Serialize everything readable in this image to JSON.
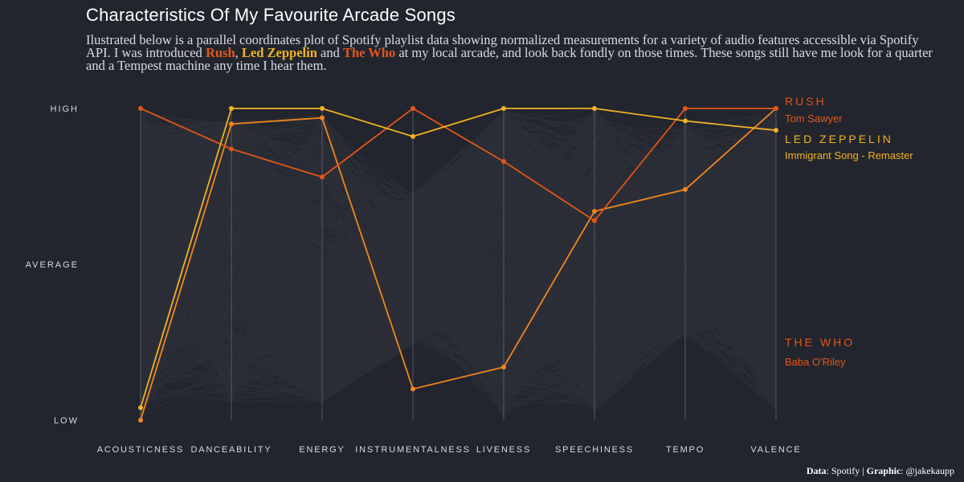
{
  "title": "Characteristics Of My Favourite Arcade Songs",
  "subtitle": {
    "part1": "Ilustrated below is a parallel coordinates plot of Spotify playlist data showing normalized measurements for a variety of audio features accessible via Spotify API. I was introduced ",
    "band1": "Rush",
    "sep1": ", ",
    "band2": "Led Zeppelin",
    "sep2": " and ",
    "band3": "The Who",
    "part2": " at my local arcade, and look back fondly on those times. These songs still have me look for a quarter and a Tempest machine any time I hear them."
  },
  "caption": {
    "data_label": "Data",
    "data_value": ": Spotify | ",
    "graphic_label": "Graphic",
    "graphic_value": ": @jakekaupp"
  },
  "chart_data": {
    "type": "parallel-coordinates",
    "axes": [
      "ACOUSTICNESS",
      "DANCEABILITY",
      "ENERGY",
      "INSTRUMENTALNESS",
      "LIVENESS",
      "SPEECHINESS",
      "TEMPO",
      "VALENCE"
    ],
    "y_ticks": [
      {
        "label": "HIGH",
        "value": 1
      },
      {
        "label": "AVERAGE",
        "value": 0.5
      },
      {
        "label": "LOW",
        "value": 0
      }
    ],
    "ylim": [
      0,
      1
    ],
    "grid": false,
    "background_distribution": {
      "color": "#cfd8e3",
      "upper": [
        1.0,
        0.96,
        0.98,
        0.97,
        0.99,
        1.0,
        0.95,
        0.99
      ],
      "lower": [
        0.0,
        0.06,
        0.06,
        0.0,
        0.01,
        0.03,
        0.27,
        0.03
      ]
    },
    "series": [
      {
        "name": "RUSH",
        "song": "Tom Sawyer",
        "color": "#e2561c",
        "values": [
          1.0,
          0.87,
          0.78,
          1.0,
          0.83,
          0.64,
          1.0,
          1.0
        ]
      },
      {
        "name": "LED ZEPPELIN",
        "song": "Immigrant Song - Remaster",
        "color": "#f0b224",
        "values": [
          0.04,
          1.0,
          1.0,
          0.91,
          1.0,
          1.0,
          0.96,
          0.93
        ]
      },
      {
        "name": "THE WHO",
        "song": "Baba O'Riley",
        "color": "#f0861f",
        "label_color": "#e2561c",
        "values": [
          0.0,
          0.95,
          0.97,
          0.1,
          0.17,
          0.67,
          0.74,
          1.0
        ]
      }
    ]
  }
}
